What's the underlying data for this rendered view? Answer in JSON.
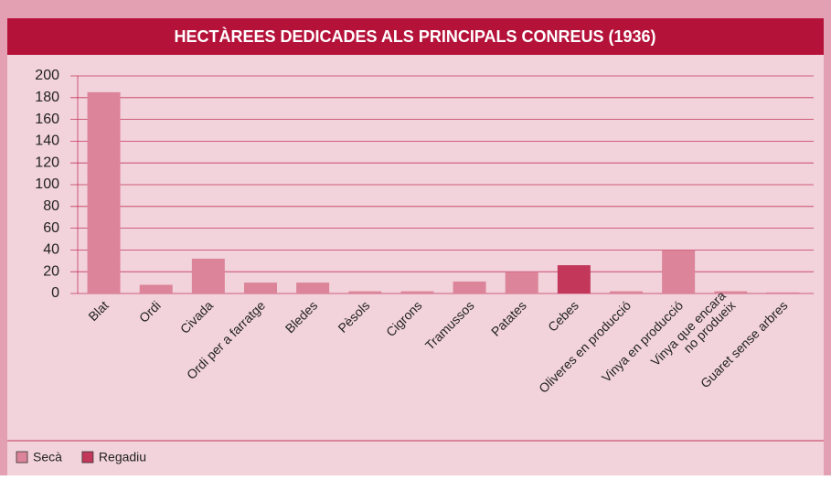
{
  "chart_data": {
    "type": "bar",
    "title": "HECTÀREES DEDICADES ALS PRINCIPALS CONREUS (1936)",
    "categories": [
      "Blat",
      "Ordi",
      "Civada",
      "Ordi per a farratge",
      "Bledes",
      "Pèsols",
      "Cigrons",
      "Tramussos",
      "Patates",
      "Cebes",
      "Oliveres en producció",
      "Vinya en producció",
      "Vinya que encara\nno produeix",
      "Guaret sense arbres"
    ],
    "series": [
      {
        "name": "Secà",
        "color": "#dc8499",
        "values": [
          185,
          8,
          32,
          10,
          10,
          2,
          2,
          11,
          20,
          null,
          2,
          40,
          2,
          1
        ]
      },
      {
        "name": "Regadiu",
        "color": "#c2375a",
        "values": [
          null,
          null,
          null,
          null,
          null,
          null,
          null,
          null,
          null,
          26,
          null,
          null,
          null,
          null
        ]
      }
    ],
    "ylim": [
      0,
      200
    ],
    "yticks": [
      0,
      20,
      40,
      60,
      80,
      100,
      120,
      140,
      160,
      180,
      200
    ],
    "grid": true,
    "legend": "bottom-left"
  }
}
